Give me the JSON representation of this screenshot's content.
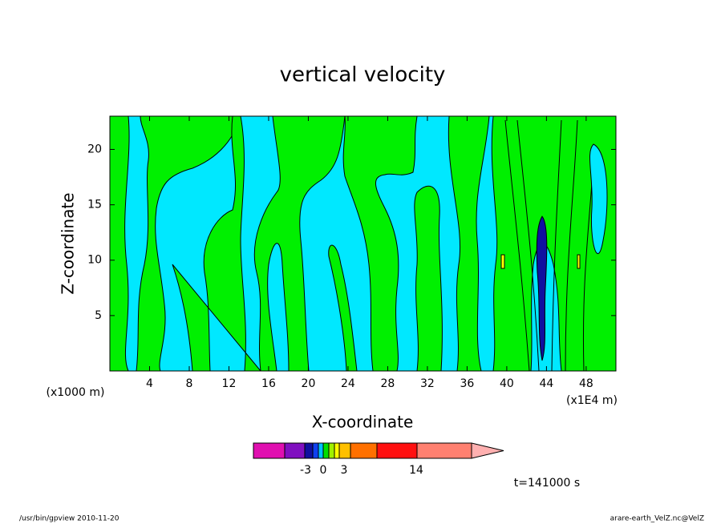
{
  "chart_data": {
    "type": "contour",
    "title": "vertical velocity",
    "x_label": "X-coordinate",
    "y_label": "Z-coordinate",
    "x_unit_label": "(x1E4 m)",
    "y_unit_label": "(x1000 m)",
    "xlim": [
      0,
      51
    ],
    "ylim": [
      0,
      23
    ],
    "xticks": [
      4,
      8,
      12,
      16,
      20,
      24,
      28,
      32,
      36,
      40,
      44,
      48
    ],
    "yticks": [
      5,
      10,
      15,
      20
    ],
    "colorbar": {
      "colors": [
        "#e010b0",
        "#8010c0",
        "#1010a0",
        "#1040f0",
        "#00c0ff",
        "#00e000",
        "#a0f000",
        "#ffff00",
        "#ffc000",
        "#ff7000",
        "#ff1010",
        "#ff8070",
        "#ffb0b0"
      ],
      "ticks": [
        -3,
        0,
        3,
        14
      ]
    },
    "annotation": "t=141000 s",
    "footer_left": "/usr/bin/gpview  2010-11-20",
    "footer_right": "arare-earth_VelZ.nc@VelZ"
  }
}
